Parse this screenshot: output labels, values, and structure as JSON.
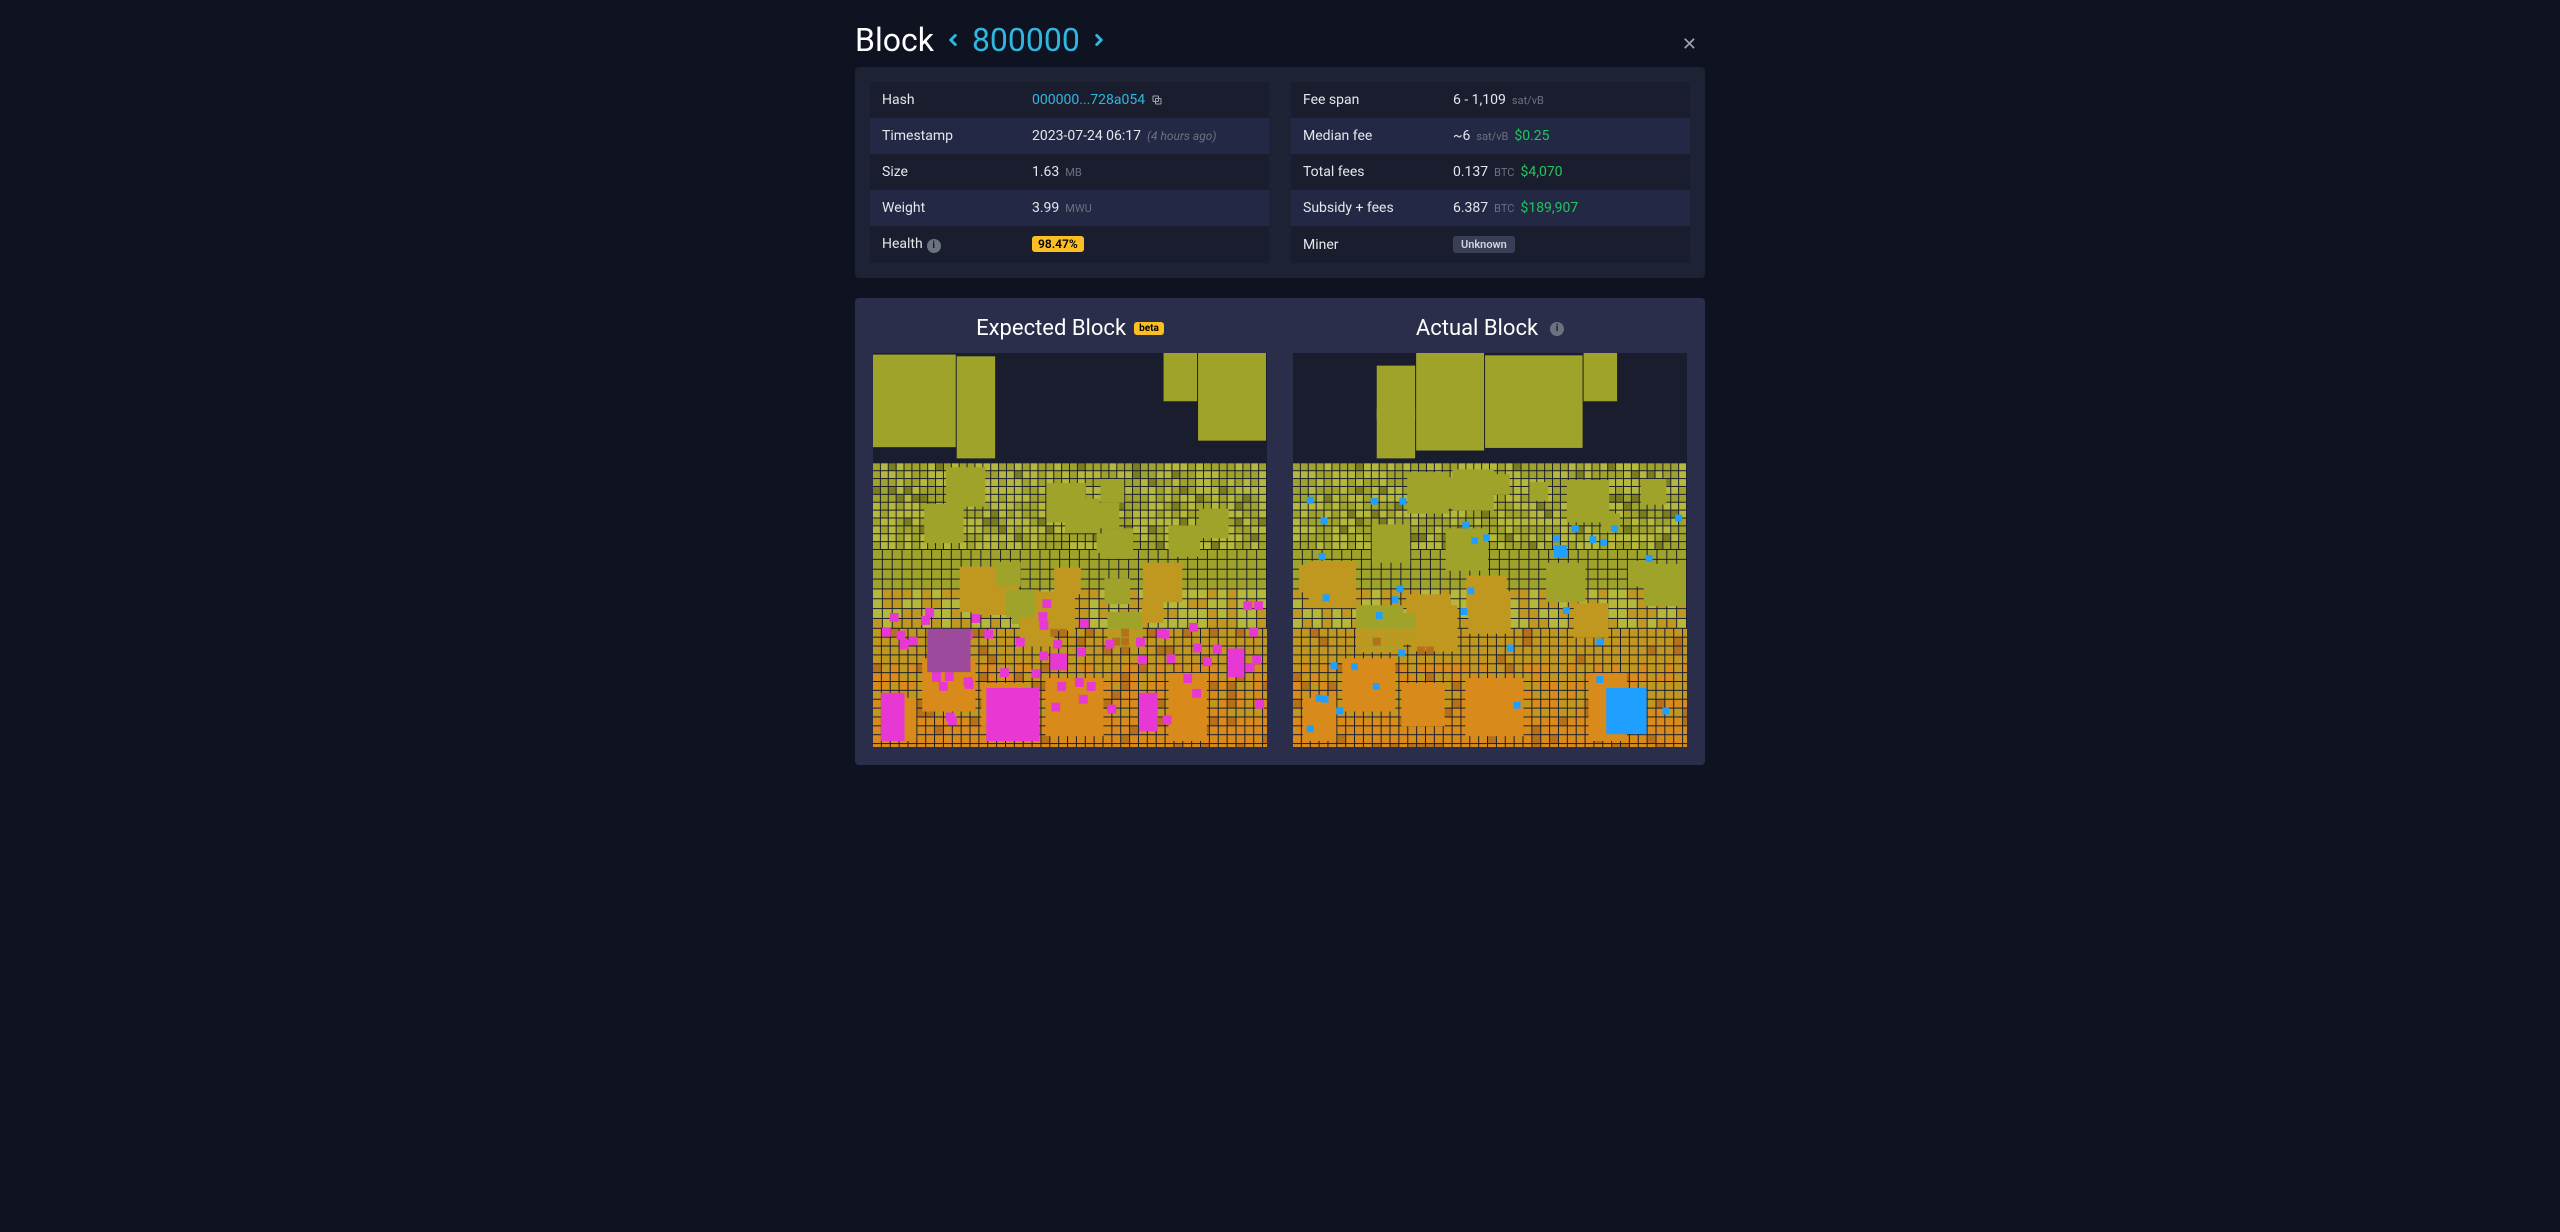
{
  "header": {
    "title": "Block",
    "block_number": "800000"
  },
  "left_table": [
    {
      "label": "Hash",
      "type": "hash",
      "value": "000000...728a054"
    },
    {
      "label": "Timestamp",
      "type": "ts",
      "value": "2023-07-24 06:17",
      "ago": "(4 hours ago)"
    },
    {
      "label": "Size",
      "type": "unit",
      "value": "1.63",
      "unit": "MB"
    },
    {
      "label": "Weight",
      "type": "unit",
      "value": "3.99",
      "unit": "MWU"
    },
    {
      "label": "Health",
      "type": "health",
      "value": "98.47%",
      "info": true
    }
  ],
  "right_table": [
    {
      "label": "Fee span",
      "type": "unit",
      "value": "6 - 1,109",
      "unit": "sat/vB"
    },
    {
      "label": "Median fee",
      "type": "fee",
      "value": "~6",
      "unit": "sat/vB",
      "usd": "$0.25"
    },
    {
      "label": "Total fees",
      "type": "fee",
      "value": "0.137",
      "unit": "BTC",
      "usd": "$4,070"
    },
    {
      "label": "Subsidy + fees",
      "type": "fee",
      "value": "6.387",
      "unit": "BTC",
      "usd": "$189,907"
    },
    {
      "label": "Miner",
      "type": "miner",
      "value": "Unknown"
    }
  ],
  "viz": {
    "expected_title": "Expected Block",
    "beta_label": "beta",
    "actual_title": "Actual Block",
    "colors": {
      "olive": "#a0a32a",
      "olive_dark": "#7a7d1e",
      "olive_light": "#b5b83a",
      "gold": "#c09820",
      "orange": "#d88a1a",
      "orange_dark": "#b5701a",
      "pink": "#e838d4",
      "purple": "#9d4a9d",
      "cyan": "#1f9fff",
      "bg": "#1a1d2e",
      "gap": "#1a1d2e"
    },
    "expected_highlight": "pink",
    "actual_highlight": "cyan"
  }
}
